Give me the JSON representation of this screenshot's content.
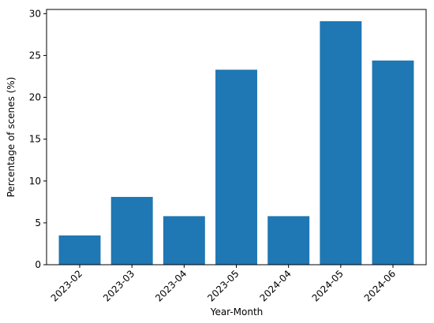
{
  "chart_data": {
    "type": "bar",
    "x_label": "Year-Month",
    "y_label": "Percentage of scenes (%)",
    "categories": [
      "2023-02",
      "2023-03",
      "2023-04",
      "2023-05",
      "2024-04",
      "2024-05",
      "2024-06"
    ],
    "values": [
      3.5,
      8.1,
      5.8,
      23.3,
      5.8,
      29.1,
      24.4
    ],
    "color": "#1f77b4",
    "ylim": [
      0,
      30.5
    ],
    "yticks": [
      0,
      5,
      10,
      15,
      20,
      25,
      30
    ],
    "grid": false
  }
}
